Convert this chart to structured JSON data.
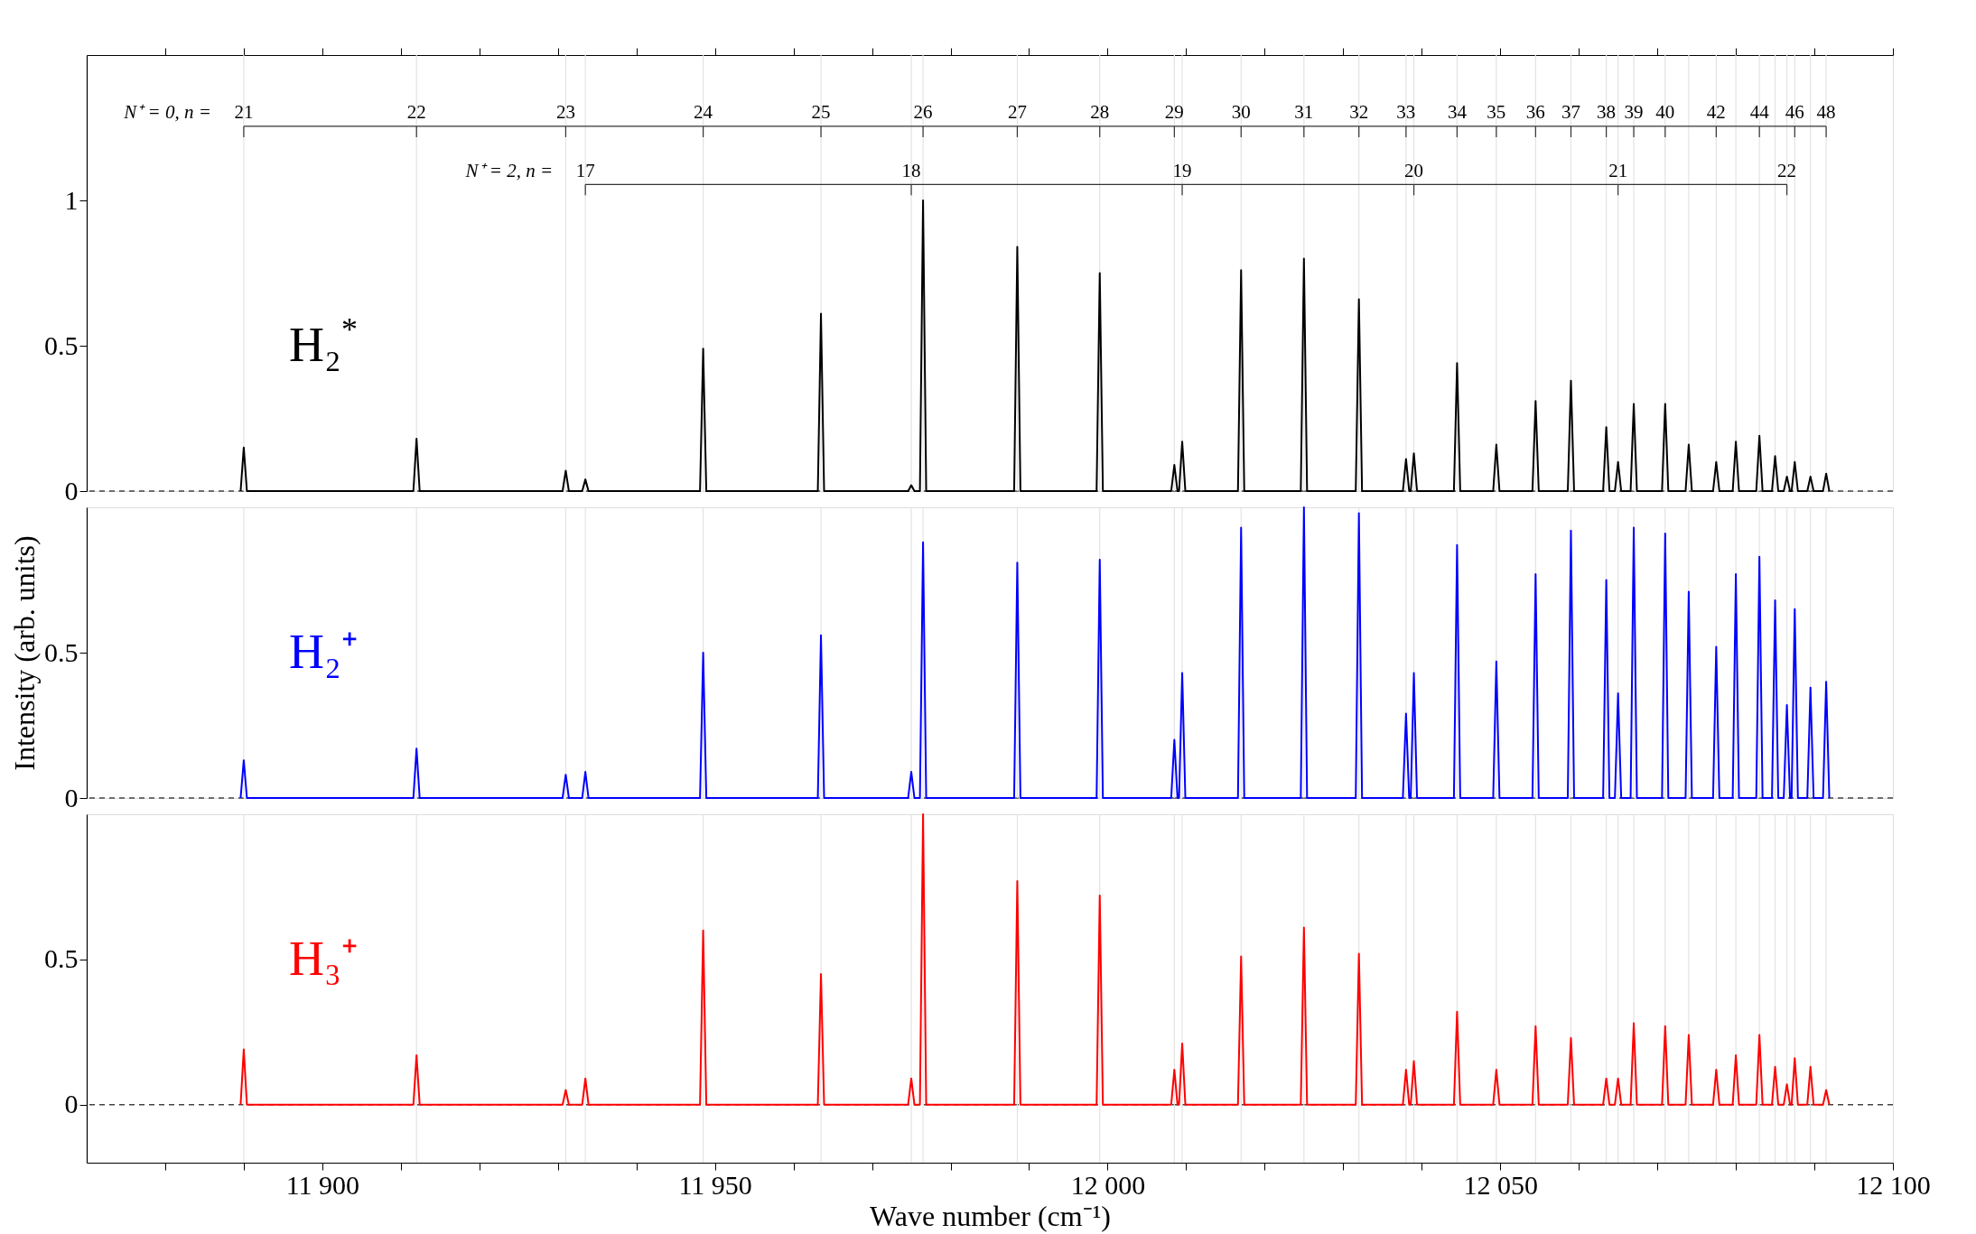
{
  "chart_data": [
    {
      "type": "line",
      "tick_labels": "y",
      "xlim": [
        11870,
        12100
      ],
      "ylim": [
        0,
        1.5
      ],
      "xticks": [
        {
          "value": 11880,
          "label": null
        },
        {
          "value": 11890,
          "label": null
        },
        {
          "value": 11900,
          "label": null
        },
        {
          "value": 11910,
          "label": null
        },
        {
          "value": 11920,
          "label": null
        },
        {
          "value": 11930,
          "label": null
        },
        {
          "value": 11940,
          "label": null
        },
        {
          "value": 11950,
          "label": null
        },
        {
          "value": 11960,
          "label": null
        },
        {
          "value": 11970,
          "label": null
        },
        {
          "value": 11980,
          "label": null
        },
        {
          "value": 11990,
          "label": null
        },
        {
          "value": 12000,
          "label": null
        },
        {
          "value": 12010,
          "label": null
        },
        {
          "value": 12020,
          "label": null
        },
        {
          "value": 12030,
          "label": null
        },
        {
          "value": 12040,
          "label": null
        },
        {
          "value": 12050,
          "label": null
        },
        {
          "value": 12060,
          "label": null
        },
        {
          "value": 12070,
          "label": null
        },
        {
          "value": 12080,
          "label": null
        },
        {
          "value": 12090,
          "label": null
        },
        {
          "value": 12100,
          "label": null
        }
      ],
      "yticks": [
        0,
        0.5,
        1
      ],
      "grid": false,
      "legend": false,
      "line_style": "solid",
      "marker": "none",
      "x": [
        11889.6,
        11890,
        11890.4,
        11911.6,
        11912,
        11912.4,
        11930.6,
        11931,
        11931.4,
        11933.1,
        11933.5,
        11933.9,
        11948.1,
        11948.5,
        11948.9,
        11963.1,
        11963.5,
        11963.9,
        11974.6,
        11975,
        11975.4,
        11976.1,
        11976.5,
        11976.9,
        11988.1,
        11988.5,
        11988.9,
        11998.6,
        11999,
        11999.4,
        12008.1,
        12008.5,
        12008.9,
        12009.1,
        12009.5,
        12009.9,
        12016.6,
        12017,
        12017.4,
        12024.6,
        12025,
        12025.4,
        12031.6,
        12032,
        12032.4,
        12037.6,
        12038,
        12038.4,
        12038.6,
        12039,
        12039.4,
        12044.1,
        12044.5,
        12044.9,
        12049.1,
        12049.5,
        12049.9,
        12054.1,
        12054.5,
        12054.9,
        12058.6,
        12059,
        12059.4,
        12063.1,
        12063.5,
        12063.9,
        12064.6,
        12065,
        12065.4,
        12066.6,
        12067,
        12067.4,
        12070.6,
        12071,
        12071.4,
        12073.6,
        12074,
        12074.4,
        12077.1,
        12077.5,
        12077.9,
        12079.6,
        12080,
        12080.4,
        12082.6,
        12083,
        12083.4,
        12084.6,
        12085,
        12085.4,
        12086.1,
        12086.5,
        12086.9,
        12087.1,
        12087.5,
        12087.9,
        12089.1,
        12089.5,
        12089.9,
        12091.1,
        12091.5,
        12091.9
      ],
      "series": [
        {
          "name": "H₂$^{*}$",
          "color": "#000000",
          "values": [
            0,
            0.15,
            0,
            0,
            0.18,
            0,
            0,
            0.07,
            0,
            0,
            0.04,
            0,
            0,
            0.49,
            0,
            0,
            0.61,
            0,
            0,
            0.02,
            0,
            0,
            1.0,
            0,
            0,
            0.84,
            0,
            0,
            0.75,
            0,
            0,
            0.09,
            0,
            0,
            0.17,
            0,
            0,
            0.76,
            0,
            0,
            0.8,
            0,
            0,
            0.66,
            0,
            0,
            0.11,
            0,
            0,
            0.13,
            0,
            0,
            0.44,
            0,
            0,
            0.16,
            0,
            0,
            0.31,
            0,
            0,
            0.38,
            0,
            0,
            0.22,
            0,
            0,
            0.1,
            0,
            0,
            0.3,
            0,
            0,
            0.3,
            0,
            0,
            0.16,
            0,
            0,
            0.1,
            0,
            0,
            0.17,
            0,
            0,
            0.19,
            0,
            0,
            0.12,
            0,
            0,
            0.05,
            0,
            0,
            0.1,
            0,
            0,
            0.05,
            0,
            0,
            0.06,
            0
          ]
        }
      ],
      "ref_lines": [
        {
          "axis": "y",
          "value": 0,
          "color": "#444444",
          "line_style": "dashed"
        },
        {
          "axis": "x",
          "value": 11890,
          "color": "#e3e3e3"
        },
        {
          "axis": "x",
          "value": 11912,
          "color": "#e3e3e3"
        },
        {
          "axis": "x",
          "value": 11931,
          "color": "#e3e3e3"
        },
        {
          "axis": "x",
          "value": 11933.5,
          "color": "#e3e3e3"
        },
        {
          "axis": "x",
          "value": 11948.5,
          "color": "#e3e3e3"
        },
        {
          "axis": "x",
          "value": 11963.5,
          "color": "#e3e3e3"
        },
        {
          "axis": "x",
          "value": 11975,
          "color": "#e3e3e3"
        },
        {
          "axis": "x",
          "value": 11976.5,
          "color": "#e3e3e3"
        },
        {
          "axis": "x",
          "value": 11988.5,
          "color": "#e3e3e3"
        },
        {
          "axis": "x",
          "value": 11999,
          "color": "#e3e3e3"
        },
        {
          "axis": "x",
          "value": 12008.5,
          "color": "#e3e3e3"
        },
        {
          "axis": "x",
          "value": 12009.5,
          "color": "#e3e3e3"
        },
        {
          "axis": "x",
          "value": 12017,
          "color": "#e3e3e3"
        },
        {
          "axis": "x",
          "value": 12025,
          "color": "#e3e3e3"
        },
        {
          "axis": "x",
          "value": 12032,
          "color": "#e3e3e3"
        },
        {
          "axis": "x",
          "value": 12038,
          "color": "#e3e3e3"
        },
        {
          "axis": "x",
          "value": 12039,
          "color": "#e3e3e3"
        },
        {
          "axis": "x",
          "value": 12044.5,
          "color": "#e3e3e3"
        },
        {
          "axis": "x",
          "value": 12049.5,
          "color": "#e3e3e3"
        },
        {
          "axis": "x",
          "value": 12054.5,
          "color": "#e3e3e3"
        },
        {
          "axis": "x",
          "value": 12059,
          "color": "#e3e3e3"
        },
        {
          "axis": "x",
          "value": 12063.5,
          "color": "#e3e3e3"
        },
        {
          "axis": "x",
          "value": 12065,
          "color": "#e3e3e3"
        },
        {
          "axis": "x",
          "value": 12067,
          "color": "#e3e3e3"
        },
        {
          "axis": "x",
          "value": 12071,
          "color": "#e3e3e3"
        },
        {
          "axis": "x",
          "value": 12074,
          "color": "#e3e3e3"
        },
        {
          "axis": "x",
          "value": 12077.5,
          "color": "#e3e3e3"
        },
        {
          "axis": "x",
          "value": 12080,
          "color": "#e3e3e3"
        },
        {
          "axis": "x",
          "value": 12083,
          "color": "#e3e3e3"
        },
        {
          "axis": "x",
          "value": 12085,
          "color": "#e3e3e3"
        },
        {
          "axis": "x",
          "value": 12086.5,
          "color": "#e3e3e3"
        },
        {
          "axis": "x",
          "value": 12087.5,
          "color": "#e3e3e3"
        },
        {
          "axis": "x",
          "value": 12089.5,
          "color": "#e3e3e3"
        },
        {
          "axis": "x",
          "value": 12091.5,
          "color": "#e3e3e3"
        }
      ],
      "annotations": [
        "N⁺ = 0, n =",
        {
          "text": "21",
          "x": 11890,
          "y": 1.3
        },
        {
          "text": "22",
          "x": 11912,
          "y": 1.3
        },
        {
          "text": "23",
          "x": 11931,
          "y": 1.3
        },
        {
          "text": "24",
          "x": 11948.5,
          "y": 1.3
        },
        {
          "text": "25",
          "x": 11963.5,
          "y": 1.3
        },
        {
          "text": "26",
          "x": 11976.5,
          "y": 1.3
        },
        {
          "text": "27",
          "x": 11988.5,
          "y": 1.3
        },
        {
          "text": "28",
          "x": 11999,
          "y": 1.3
        },
        {
          "text": "29",
          "x": 12008.5,
          "y": 1.3
        },
        {
          "text": "30",
          "x": 12017,
          "y": 1.3
        },
        {
          "text": "31",
          "x": 12025,
          "y": 1.3
        },
        {
          "text": "32",
          "x": 12032,
          "y": 1.3
        },
        {
          "text": "33",
          "x": 12038,
          "y": 1.3
        },
        {
          "text": "34",
          "x": 12044.5,
          "y": 1.3
        },
        {
          "text": "35",
          "x": 12049.5,
          "y": 1.3
        },
        {
          "text": "36",
          "x": 12054.5,
          "y": 1.3
        },
        {
          "text": "37",
          "x": 12059,
          "y": 1.3
        },
        {
          "text": "38",
          "x": 12063.5,
          "y": 1.3
        },
        {
          "text": "39",
          "x": 12067,
          "y": 1.3
        },
        {
          "text": "40",
          "x": 12071,
          "y": 1.3
        },
        {
          "text": "42",
          "x": 12077.5,
          "y": 1.3
        },
        {
          "text": "44",
          "x": 12083,
          "y": 1.3
        },
        {
          "text": "46",
          "x": 12087.5,
          "y": 1.3
        },
        {
          "text": "48",
          "x": 12091.5,
          "y": 1.3
        },
        "N⁺ = 2, n =",
        {
          "text": "17",
          "x": 11933.5,
          "y": 1.1
        },
        {
          "text": "18",
          "x": 11975,
          "y": 1.1
        },
        {
          "text": "19",
          "x": 12009.5,
          "y": 1.1
        },
        {
          "text": "20",
          "x": 12039,
          "y": 1.1
        },
        {
          "text": "21",
          "x": 12065,
          "y": 1.1
        },
        {
          "text": "22",
          "x": 12086.5,
          "y": 1.1
        }
      ]
    },
    {
      "type": "line",
      "tick_labels": "y",
      "ylabel": "Intensity (arb. units)",
      "xlim": [
        11870,
        12100
      ],
      "ylim": [
        0,
        1
      ],
      "yticks": [
        0,
        0.5
      ],
      "grid": false,
      "legend": false,
      "line_style": "solid",
      "marker": "none",
      "x": [
        11889.6,
        11890,
        11890.4,
        11911.6,
        11912,
        11912.4,
        11930.6,
        11931,
        11931.4,
        11933.1,
        11933.5,
        11933.9,
        11948.1,
        11948.5,
        11948.9,
        11963.1,
        11963.5,
        11963.9,
        11974.6,
        11975,
        11975.4,
        11976.1,
        11976.5,
        11976.9,
        11988.1,
        11988.5,
        11988.9,
        11998.6,
        11999,
        11999.4,
        12008.1,
        12008.5,
        12008.9,
        12009.1,
        12009.5,
        12009.9,
        12016.6,
        12017,
        12017.4,
        12024.6,
        12025,
        12025.4,
        12031.6,
        12032,
        12032.4,
        12037.6,
        12038,
        12038.4,
        12038.6,
        12039,
        12039.4,
        12044.1,
        12044.5,
        12044.9,
        12049.1,
        12049.5,
        12049.9,
        12054.1,
        12054.5,
        12054.9,
        12058.6,
        12059,
        12059.4,
        12063.1,
        12063.5,
        12063.9,
        12064.6,
        12065,
        12065.4,
        12066.6,
        12067,
        12067.4,
        12070.6,
        12071,
        12071.4,
        12073.6,
        12074,
        12074.4,
        12077.1,
        12077.5,
        12077.9,
        12079.6,
        12080,
        12080.4,
        12082.6,
        12083,
        12083.4,
        12084.6,
        12085,
        12085.4,
        12086.1,
        12086.5,
        12086.9,
        12087.1,
        12087.5,
        12087.9,
        12089.1,
        12089.5,
        12089.9,
        12091.1,
        12091.5,
        12091.9
      ],
      "series": [
        {
          "name": "H₂⁺",
          "color": "#0000ff",
          "values": [
            0,
            0.13,
            0,
            0,
            0.17,
            0,
            0,
            0.08,
            0,
            0,
            0.09,
            0,
            0,
            0.5,
            0,
            0,
            0.56,
            0,
            0,
            0.09,
            0,
            0,
            0.88,
            0,
            0,
            0.81,
            0,
            0,
            0.82,
            0,
            0,
            0.2,
            0,
            0,
            0.43,
            0,
            0,
            0.93,
            0,
            0,
            1.0,
            0,
            0,
            0.98,
            0,
            0,
            0.29,
            0,
            0,
            0.43,
            0,
            0,
            0.87,
            0,
            0,
            0.47,
            0,
            0,
            0.77,
            0,
            0,
            0.92,
            0,
            0,
            0.75,
            0,
            0,
            0.36,
            0,
            0,
            0.93,
            0,
            0,
            0.91,
            0,
            0,
            0.71,
            0,
            0,
            0.52,
            0,
            0,
            0.77,
            0,
            0,
            0.83,
            0,
            0,
            0.68,
            0,
            0,
            0.32,
            0,
            0,
            0.65,
            0,
            0,
            0.38,
            0,
            0,
            0.4,
            0
          ]
        }
      ],
      "ref_lines": [
        {
          "axis": "y",
          "value": 0,
          "color": "#444444",
          "line_style": "dashed"
        },
        {
          "axis": "x",
          "value": 11890,
          "color": "#e3e3e3"
        },
        {
          "axis": "x",
          "value": 11912,
          "color": "#e3e3e3"
        },
        {
          "axis": "x",
          "value": 11931,
          "color": "#e3e3e3"
        },
        {
          "axis": "x",
          "value": 11933.5,
          "color": "#e3e3e3"
        },
        {
          "axis": "x",
          "value": 11948.5,
          "color": "#e3e3e3"
        },
        {
          "axis": "x",
          "value": 11963.5,
          "color": "#e3e3e3"
        },
        {
          "axis": "x",
          "value": 11975,
          "color": "#e3e3e3"
        },
        {
          "axis": "x",
          "value": 11976.5,
          "color": "#e3e3e3"
        },
        {
          "axis": "x",
          "value": 11988.5,
          "color": "#e3e3e3"
        },
        {
          "axis": "x",
          "value": 11999,
          "color": "#e3e3e3"
        },
        {
          "axis": "x",
          "value": 12008.5,
          "color": "#e3e3e3"
        },
        {
          "axis": "x",
          "value": 12009.5,
          "color": "#e3e3e3"
        },
        {
          "axis": "x",
          "value": 12017,
          "color": "#e3e3e3"
        },
        {
          "axis": "x",
          "value": 12025,
          "color": "#e3e3e3"
        },
        {
          "axis": "x",
          "value": 12032,
          "color": "#e3e3e3"
        },
        {
          "axis": "x",
          "value": 12038,
          "color": "#e3e3e3"
        },
        {
          "axis": "x",
          "value": 12039,
          "color": "#e3e3e3"
        },
        {
          "axis": "x",
          "value": 12044.5,
          "color": "#e3e3e3"
        },
        {
          "axis": "x",
          "value": 12049.5,
          "color": "#e3e3e3"
        },
        {
          "axis": "x",
          "value": 12054.5,
          "color": "#e3e3e3"
        },
        {
          "axis": "x",
          "value": 12059,
          "color": "#e3e3e3"
        },
        {
          "axis": "x",
          "value": 12063.5,
          "color": "#e3e3e3"
        },
        {
          "axis": "x",
          "value": 12065,
          "color": "#e3e3e3"
        },
        {
          "axis": "x",
          "value": 12067,
          "color": "#e3e3e3"
        },
        {
          "axis": "x",
          "value": 12071,
          "color": "#e3e3e3"
        },
        {
          "axis": "x",
          "value": 12074,
          "color": "#e3e3e3"
        },
        {
          "axis": "x",
          "value": 12077.5,
          "color": "#e3e3e3"
        },
        {
          "axis": "x",
          "value": 12080,
          "color": "#e3e3e3"
        },
        {
          "axis": "x",
          "value": 12083,
          "color": "#e3e3e3"
        },
        {
          "axis": "x",
          "value": 12085,
          "color": "#e3e3e3"
        },
        {
          "axis": "x",
          "value": 12086.5,
          "color": "#e3e3e3"
        },
        {
          "axis": "x",
          "value": 12087.5,
          "color": "#e3e3e3"
        },
        {
          "axis": "x",
          "value": 12089.5,
          "color": "#e3e3e3"
        },
        {
          "axis": "x",
          "value": 12091.5,
          "color": "#e3e3e3"
        }
      ]
    },
    {
      "type": "line",
      "xlabel": "Wave number (cm⁻¹)",
      "xlim": [
        11870,
        12100
      ],
      "ylim": [
        -0.2,
        1
      ],
      "xticks": [
        {
          "value": 11880,
          "label": null
        },
        {
          "value": 11890,
          "label": null
        },
        {
          "value": 11900,
          "label": "11 900"
        },
        {
          "value": 11910,
          "label": null
        },
        {
          "value": 11920,
          "label": null
        },
        {
          "value": 11930,
          "label": null
        },
        {
          "value": 11940,
          "label": null
        },
        {
          "value": 11950,
          "label": "11 950"
        },
        {
          "value": 11960,
          "label": null
        },
        {
          "value": 11970,
          "label": null
        },
        {
          "value": 11980,
          "label": null
        },
        {
          "value": 11990,
          "label": null
        },
        {
          "value": 12000,
          "label": "12 000"
        },
        {
          "value": 12010,
          "label": null
        },
        {
          "value": 12020,
          "label": null
        },
        {
          "value": 12030,
          "label": null
        },
        {
          "value": 12040,
          "label": null
        },
        {
          "value": 12050,
          "label": "12 050"
        },
        {
          "value": 12060,
          "label": null
        },
        {
          "value": 12070,
          "label": null
        },
        {
          "value": 12080,
          "label": null
        },
        {
          "value": 12090,
          "label": null
        },
        {
          "value": 12100,
          "label": "12 100"
        }
      ],
      "yticks": [
        0,
        0.5
      ],
      "grid": false,
      "legend": false,
      "line_style": "solid",
      "marker": "none",
      "x": [
        11889.6,
        11890,
        11890.4,
        11911.6,
        11912,
        11912.4,
        11930.6,
        11931,
        11931.4,
        11933.1,
        11933.5,
        11933.9,
        11948.1,
        11948.5,
        11948.9,
        11963.1,
        11963.5,
        11963.9,
        11974.6,
        11975,
        11975.4,
        11976.1,
        11976.5,
        11976.9,
        11988.1,
        11988.5,
        11988.9,
        11998.6,
        11999,
        11999.4,
        12008.1,
        12008.5,
        12008.9,
        12009.1,
        12009.5,
        12009.9,
        12016.6,
        12017,
        12017.4,
        12024.6,
        12025,
        12025.4,
        12031.6,
        12032,
        12032.4,
        12037.6,
        12038,
        12038.4,
        12038.6,
        12039,
        12039.4,
        12044.1,
        12044.5,
        12044.9,
        12049.1,
        12049.5,
        12049.9,
        12054.1,
        12054.5,
        12054.9,
        12058.6,
        12059,
        12059.4,
        12063.1,
        12063.5,
        12063.9,
        12064.6,
        12065,
        12065.4,
        12066.6,
        12067,
        12067.4,
        12070.6,
        12071,
        12071.4,
        12073.6,
        12074,
        12074.4,
        12077.1,
        12077.5,
        12077.9,
        12079.6,
        12080,
        12080.4,
        12082.6,
        12083,
        12083.4,
        12084.6,
        12085,
        12085.4,
        12086.1,
        12086.5,
        12086.9,
        12087.1,
        12087.5,
        12087.9,
        12089.1,
        12089.5,
        12089.9,
        12091.1,
        12091.5,
        12091.9
      ],
      "series": [
        {
          "name": "H₃⁺",
          "color": "#ff0000",
          "values": [
            0,
            0.19,
            0,
            0,
            0.17,
            0,
            0,
            0.05,
            0,
            0,
            0.09,
            0,
            0,
            0.6,
            0,
            0,
            0.45,
            0,
            0,
            0.09,
            0,
            0,
            1.0,
            0,
            0,
            0.77,
            0,
            0,
            0.72,
            0,
            0,
            0.12,
            0,
            0,
            0.21,
            0,
            0,
            0.51,
            0,
            0,
            0.61,
            0,
            0,
            0.52,
            0,
            0,
            0.12,
            0,
            0,
            0.15,
            0,
            0,
            0.32,
            0,
            0,
            0.12,
            0,
            0,
            0.27,
            0,
            0,
            0.23,
            0,
            0,
            0.09,
            0,
            0,
            0.09,
            0,
            0,
            0.28,
            0,
            0,
            0.27,
            0,
            0,
            0.24,
            0,
            0,
            0.12,
            0,
            0,
            0.17,
            0,
            0,
            0.24,
            0,
            0,
            0.13,
            0,
            0,
            0.07,
            0,
            0,
            0.16,
            0,
            0,
            0.13,
            0,
            0,
            0.05,
            0
          ]
        }
      ],
      "ref_lines": [
        {
          "axis": "y",
          "value": 0,
          "color": "#444444",
          "line_style": "dashed"
        },
        {
          "axis": "x",
          "value": 11890,
          "color": "#e3e3e3"
        },
        {
          "axis": "x",
          "value": 11912,
          "color": "#e3e3e3"
        },
        {
          "axis": "x",
          "value": 11931,
          "color": "#e3e3e3"
        },
        {
          "axis": "x",
          "value": 11933.5,
          "color": "#e3e3e3"
        },
        {
          "axis": "x",
          "value": 11948.5,
          "color": "#e3e3e3"
        },
        {
          "axis": "x",
          "value": 11963.5,
          "color": "#e3e3e3"
        },
        {
          "axis": "x",
          "value": 11975,
          "color": "#e3e3e3"
        },
        {
          "axis": "x",
          "value": 11976.5,
          "color": "#e3e3e3"
        },
        {
          "axis": "x",
          "value": 11988.5,
          "color": "#e3e3e3"
        },
        {
          "axis": "x",
          "value": 11999,
          "color": "#e3e3e3"
        },
        {
          "axis": "x",
          "value": 12008.5,
          "color": "#e3e3e3"
        },
        {
          "axis": "x",
          "value": 12009.5,
          "color": "#e3e3e3"
        },
        {
          "axis": "x",
          "value": 12017,
          "color": "#e3e3e3"
        },
        {
          "axis": "x",
          "value": 12025,
          "color": "#e3e3e3"
        },
        {
          "axis": "x",
          "value": 12032,
          "color": "#e3e3e3"
        },
        {
          "axis": "x",
          "value": 12038,
          "color": "#e3e3e3"
        },
        {
          "axis": "x",
          "value": 12039,
          "color": "#e3e3e3"
        },
        {
          "axis": "x",
          "value": 12044.5,
          "color": "#e3e3e3"
        },
        {
          "axis": "x",
          "value": 12049.5,
          "color": "#e3e3e3"
        },
        {
          "axis": "x",
          "value": 12054.5,
          "color": "#e3e3e3"
        },
        {
          "axis": "x",
          "value": 12059,
          "color": "#e3e3e3"
        },
        {
          "axis": "x",
          "value": 12063.5,
          "color": "#e3e3e3"
        },
        {
          "axis": "x",
          "value": 12065,
          "color": "#e3e3e3"
        },
        {
          "axis": "x",
          "value": 12067,
          "color": "#e3e3e3"
        },
        {
          "axis": "x",
          "value": 12071,
          "color": "#e3e3e3"
        },
        {
          "axis": "x",
          "value": 12074,
          "color": "#e3e3e3"
        },
        {
          "axis": "x",
          "value": 12077.5,
          "color": "#e3e3e3"
        },
        {
          "axis": "x",
          "value": 12080,
          "color": "#e3e3e3"
        },
        {
          "axis": "x",
          "value": 12083,
          "color": "#e3e3e3"
        },
        {
          "axis": "x",
          "value": 12085,
          "color": "#e3e3e3"
        },
        {
          "axis": "x",
          "value": 12086.5,
          "color": "#e3e3e3"
        },
        {
          "axis": "x",
          "value": 12087.5,
          "color": "#e3e3e3"
        },
        {
          "axis": "x",
          "value": 12089.5,
          "color": "#e3e3e3"
        },
        {
          "axis": "x",
          "value": 12091.5,
          "color": "#e3e3e3"
        }
      ]
    }
  ]
}
